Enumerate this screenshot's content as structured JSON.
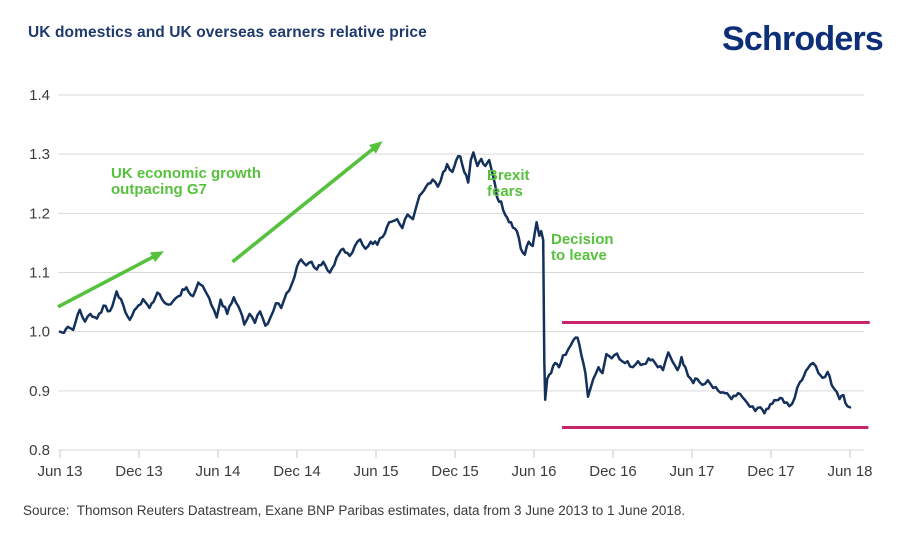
{
  "header": {
    "title": "UK domestics and UK overseas earners relative price",
    "logo_text": "Schroders"
  },
  "footer": {
    "source_text": "Source:  Thomson Reuters Datastream, Exane BNP Paribas estimates, data from 3 June 2013 to 1 June 2018."
  },
  "colors": {
    "title_navy": "#1f3a6d",
    "logo_navy": "#0d2f78",
    "series_navy": "#14315c",
    "annotation_green": "#56c13d",
    "band_pink": "#c9246b",
    "gridline": "#d9d9d9",
    "tick": "#c8c8c8",
    "axis_text": "#3d3d3d"
  },
  "chart_data": {
    "type": "line",
    "title": "UK domestics and UK overseas earners relative price",
    "x_unit": "months since Jun 2013",
    "x_tick_labels": [
      "Jun 13",
      "Dec 13",
      "Jun 14",
      "Dec 14",
      "Jun 15",
      "Dec 15",
      "Jun 16",
      "Dec 16",
      "Jun 17",
      "Dec 17",
      "Jun 18"
    ],
    "x_tick_months": [
      0,
      6,
      12,
      18,
      24,
      30,
      36,
      42,
      48,
      54,
      60
    ],
    "ylim": [
      0.8,
      1.4
    ],
    "y_ticks": [
      0.8,
      0.9,
      1.0,
      1.1,
      1.2,
      1.3,
      1.4
    ],
    "y_tick_labels": [
      "0.8",
      "0.9",
      "1.0",
      "1.1",
      "1.2",
      "1.3",
      "1.4"
    ],
    "grid": "horizontal",
    "legend": "none",
    "series": [
      {
        "name": "UK domestics vs UK overseas earners relative price",
        "color_key": "series_navy",
        "points": [
          [
            0,
            1.0
          ],
          [
            0.3,
            0.998
          ],
          [
            0.6,
            1.008
          ],
          [
            1,
            1.003
          ],
          [
            1.5,
            1.037
          ],
          [
            1.9,
            1.017
          ],
          [
            2.3,
            1.03
          ],
          [
            2.8,
            1.022
          ],
          [
            3.3,
            1.044
          ],
          [
            3.8,
            1.035
          ],
          [
            4.3,
            1.068
          ],
          [
            4.8,
            1.045
          ],
          [
            5.3,
            1.02
          ],
          [
            5.8,
            1.04
          ],
          [
            6.3,
            1.055
          ],
          [
            6.8,
            1.04
          ],
          [
            7.4,
            1.066
          ],
          [
            7.9,
            1.05
          ],
          [
            8.4,
            1.046
          ],
          [
            9,
            1.06
          ],
          [
            9.6,
            1.075
          ],
          [
            10.1,
            1.06
          ],
          [
            10.5,
            1.083
          ],
          [
            11,
            1.07
          ],
          [
            11.5,
            1.045
          ],
          [
            11.9,
            1.024
          ],
          [
            12.2,
            1.054
          ],
          [
            12.7,
            1.03
          ],
          [
            13.2,
            1.058
          ],
          [
            13.7,
            1.035
          ],
          [
            14,
            1.012
          ],
          [
            14.4,
            1.03
          ],
          [
            14.8,
            1.015
          ],
          [
            15.2,
            1.034
          ],
          [
            15.6,
            1.01
          ],
          [
            16,
            1.025
          ],
          [
            16.4,
            1.048
          ],
          [
            16.8,
            1.04
          ],
          [
            17.2,
            1.065
          ],
          [
            17.6,
            1.08
          ],
          [
            18,
            1.11
          ],
          [
            18.3,
            1.122
          ],
          [
            18.7,
            1.112
          ],
          [
            19.1,
            1.118
          ],
          [
            19.5,
            1.105
          ],
          [
            20,
            1.118
          ],
          [
            20.5,
            1.1
          ],
          [
            21,
            1.125
          ],
          [
            21.5,
            1.14
          ],
          [
            22,
            1.128
          ],
          [
            22.4,
            1.145
          ],
          [
            22.8,
            1.156
          ],
          [
            23.2,
            1.14
          ],
          [
            23.6,
            1.152
          ],
          [
            24.1,
            1.147
          ],
          [
            24.5,
            1.16
          ],
          [
            25,
            1.185
          ],
          [
            25.6,
            1.19
          ],
          [
            26,
            1.175
          ],
          [
            26.4,
            1.198
          ],
          [
            26.8,
            1.19
          ],
          [
            27.3,
            1.23
          ],
          [
            27.8,
            1.245
          ],
          [
            28.3,
            1.257
          ],
          [
            28.7,
            1.245
          ],
          [
            29.1,
            1.27
          ],
          [
            29.4,
            1.283
          ],
          [
            29.8,
            1.27
          ],
          [
            30.1,
            1.29
          ],
          [
            30.4,
            1.296
          ],
          [
            30.7,
            1.27
          ],
          [
            31,
            1.252
          ],
          [
            31.2,
            1.29
          ],
          [
            31.4,
            1.303
          ],
          [
            31.7,
            1.28
          ],
          [
            32,
            1.292
          ],
          [
            32.3,
            1.28
          ],
          [
            32.6,
            1.29
          ],
          [
            32.9,
            1.262
          ],
          [
            33.2,
            1.227
          ],
          [
            33.5,
            1.22
          ],
          [
            33.8,
            1.198
          ],
          [
            34.1,
            1.185
          ],
          [
            34.4,
            1.176
          ],
          [
            34.7,
            1.17
          ],
          [
            35,
            1.14
          ],
          [
            35.3,
            1.13
          ],
          [
            35.6,
            1.152
          ],
          [
            35.9,
            1.145
          ],
          [
            36.2,
            1.185
          ],
          [
            36.4,
            1.162
          ],
          [
            36.55,
            1.17
          ],
          [
            36.7,
            1.155
          ],
          [
            36.78,
            0.95
          ],
          [
            36.85,
            0.885
          ],
          [
            37,
            0.92
          ],
          [
            37.3,
            0.93
          ],
          [
            37.6,
            0.947
          ],
          [
            37.9,
            0.94
          ],
          [
            38.2,
            0.96
          ],
          [
            38.6,
            0.97
          ],
          [
            39,
            0.986
          ],
          [
            39.3,
            0.99
          ],
          [
            39.6,
            0.96
          ],
          [
            39.9,
            0.93
          ],
          [
            40.1,
            0.89
          ],
          [
            40.5,
            0.92
          ],
          [
            40.9,
            0.94
          ],
          [
            41.2,
            0.93
          ],
          [
            41.5,
            0.962
          ],
          [
            41.9,
            0.955
          ],
          [
            42.3,
            0.963
          ],
          [
            42.7,
            0.95
          ],
          [
            43.1,
            0.95
          ],
          [
            43.5,
            0.94
          ],
          [
            43.9,
            0.95
          ],
          [
            44.3,
            0.945
          ],
          [
            44.7,
            0.955
          ],
          [
            45,
            0.953
          ],
          [
            45.4,
            0.94
          ],
          [
            45.8,
            0.935
          ],
          [
            46.2,
            0.965
          ],
          [
            46.5,
            0.95
          ],
          [
            46.9,
            0.935
          ],
          [
            47.2,
            0.957
          ],
          [
            47.5,
            0.94
          ],
          [
            47.7,
            0.925
          ],
          [
            48.1,
            0.913
          ],
          [
            48.4,
            0.92
          ],
          [
            48.8,
            0.91
          ],
          [
            49.2,
            0.918
          ],
          [
            49.6,
            0.905
          ],
          [
            50,
            0.9
          ],
          [
            50.5,
            0.896
          ],
          [
            51,
            0.886
          ],
          [
            51.5,
            0.896
          ],
          [
            52,
            0.885
          ],
          [
            52.4,
            0.873
          ],
          [
            52.8,
            0.866
          ],
          [
            53.2,
            0.872
          ],
          [
            53.5,
            0.862
          ],
          [
            53.8,
            0.87
          ],
          [
            54.1,
            0.878
          ],
          [
            54.4,
            0.884
          ],
          [
            54.7,
            0.888
          ],
          [
            55,
            0.88
          ],
          [
            55.4,
            0.874
          ],
          [
            55.8,
            0.888
          ],
          [
            56.2,
            0.915
          ],
          [
            56.5,
            0.925
          ],
          [
            56.8,
            0.938
          ],
          [
            57.2,
            0.947
          ],
          [
            57.6,
            0.93
          ],
          [
            57.9,
            0.922
          ],
          [
            58.3,
            0.932
          ],
          [
            58.6,
            0.91
          ],
          [
            59,
            0.898
          ],
          [
            59.2,
            0.886
          ],
          [
            59.5,
            0.893
          ],
          [
            59.8,
            0.874
          ],
          [
            60,
            0.872
          ]
        ]
      }
    ],
    "reference_lines": [
      {
        "value": 1.0155,
        "from_month": 38.13,
        "to_month": 61.5,
        "color_key": "band_pink"
      },
      {
        "value": 0.838,
        "from_month": 38.13,
        "to_month": 61.4,
        "color_key": "band_pink"
      }
    ],
    "arrows": [
      {
        "from": [
          -0.15,
          1.042
        ],
        "to": [
          7.9,
          1.136
        ],
        "color_key": "annotation_green"
      },
      {
        "from": [
          13.1,
          1.118
        ],
        "to": [
          24.5,
          1.322
        ],
        "color_key": "annotation_green"
      }
    ],
    "annotations": [
      {
        "id": "uk-growth",
        "text": "UK economic growth\noutpacing G7"
      },
      {
        "id": "brexit-fears",
        "text": "Brexit\nfears"
      },
      {
        "id": "decision-to-leave",
        "text": "Decision\nto leave"
      }
    ],
    "style": {
      "jitter": 0.0045,
      "line_width": 2.5
    }
  }
}
